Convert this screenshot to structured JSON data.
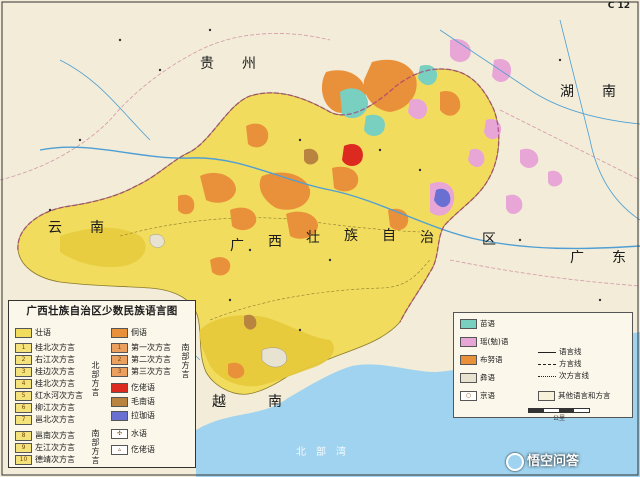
{
  "page_code": "C 12",
  "labels": {
    "guizhou": "贵　　州",
    "hunan": "湖　　南",
    "yunnan": "云　　南",
    "guangdong": "广　　东",
    "guangxi": [
      "广",
      "西",
      "壮",
      "族",
      "自",
      "治",
      "区"
    ],
    "vietnam": "越　　　南",
    "beibuwan": "北　部　湾"
  },
  "legend": {
    "title": "广西壮族自治区少数民族语言图",
    "zhuang": "壮语",
    "north_group": "北部方言",
    "south_group": "南部方言",
    "north": [
      "桂北次方言",
      "右江次方言",
      "桂边次方言",
      "桂北次方言",
      "红水河次方言",
      "柳江次方言",
      "邕北次方言"
    ],
    "south": [
      "邕南次方言",
      "左江次方言",
      "德靖次方言"
    ],
    "dong": "侗语",
    "dong_group": "南部方言",
    "dong_sub": [
      "第一次方言",
      "第二次方言",
      "第三次方言"
    ],
    "gelao": "仡佬语",
    "maonan": "毛南语",
    "lajia": "拉珈语",
    "shui": "水语",
    "yi_other": "仡佬语"
  },
  "legend2": {
    "miao": "苗语",
    "yao": "瑶(勉)语",
    "bunu": "布努语",
    "yi": "彝语",
    "jing": "京语",
    "lines": [
      "语言线",
      "方言线",
      "次方言线"
    ],
    "other": "其他语言和方言"
  },
  "scale_label": "公里",
  "watermark": "悟空问答",
  "colors": {
    "zhuang": "#f1dc5e",
    "zhuang_dark": "#e7c93a",
    "orange": "#e9913a",
    "miao": "#79cfc0",
    "yao": "#e7a6d6",
    "red": "#dd2a20",
    "blue": "#6a6fd2",
    "brown": "#b98340",
    "sea": "#9fd3ef",
    "land": "#f2ecd8"
  }
}
